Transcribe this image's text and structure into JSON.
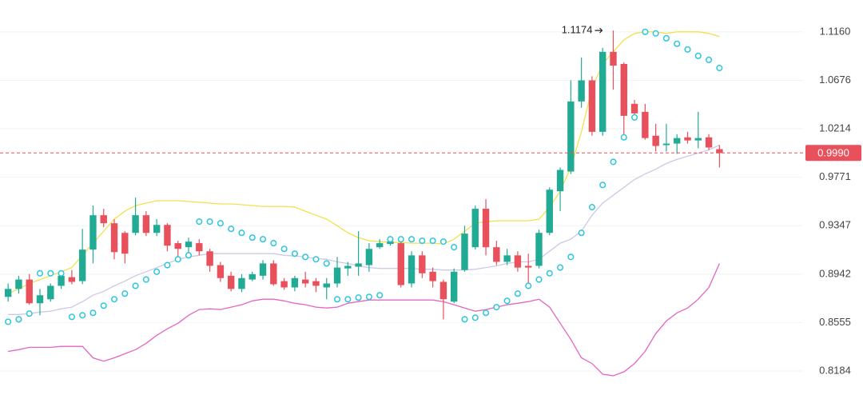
{
  "chart_data": {
    "type": "candlestick",
    "log_scale": true,
    "grid": true,
    "up_color": "#22ab94",
    "down_color": "#e8505b",
    "categories": [
      null,
      null,
      null,
      null,
      null,
      null,
      null,
      null,
      null,
      null,
      null,
      null,
      null,
      null,
      null,
      null,
      null,
      null,
      null,
      null,
      null,
      null,
      null,
      null,
      null,
      null,
      null,
      null,
      null,
      null,
      null,
      null,
      null,
      null,
      null,
      null,
      null,
      null,
      null,
      null,
      null,
      null,
      null,
      null,
      null,
      null,
      null,
      null,
      null,
      null,
      null,
      null,
      null,
      null,
      null,
      null,
      null,
      null,
      null,
      null,
      null,
      null,
      null,
      null,
      null,
      null,
      null,
      null
    ],
    "open": [
      0.8758,
      0.8822,
      0.8898,
      0.8707,
      0.8739,
      0.8847,
      0.8917,
      0.8885,
      0.9145,
      0.9437,
      0.9368,
      0.9286,
      0.9286,
      0.9437,
      0.9286,
      0.9354,
      0.9199,
      0.9165,
      0.9199,
      0.9131,
      0.9016,
      0.8929,
      0.8822,
      0.8898,
      0.8929,
      0.903,
      0.8885,
      0.8834,
      0.8898,
      0.8885,
      0.8834,
      0.8866,
      0.8989,
      0.9003,
      0.9016,
      0.9165,
      0.9192,
      0.9199,
      0.8866,
      0.9097,
      0.8962,
      0.8879,
      0.872,
      0.8976,
      0.9165,
      0.9493,
      0.9165,
      0.9043,
      0.9097,
      0.901,
      0.901,
      0.9286,
      0.9646,
      0.9822,
      1.0472,
      1.0676,
      1.0185,
      1.0958,
      1.0837,
      1.0449,
      1.0373,
      1.0149,
      1.0062,
      1.0076,
      1.0134,
      1.0105,
      1.0134,
      1.0025
    ],
    "high": [
      0.8866,
      0.8929,
      0.8942,
      0.8822,
      0.8866,
      0.8962,
      0.8976,
      0.932,
      0.9521,
      0.9493,
      0.9403,
      0.93,
      0.959,
      0.9472,
      0.9403,
      0.9368,
      0.9219,
      0.9246,
      0.9232,
      0.9151,
      0.9043,
      0.8962,
      0.8942,
      0.8962,
      0.9057,
      0.9057,
      0.891,
      0.8929,
      0.8962,
      0.891,
      0.891,
      0.9084,
      0.9043,
      0.93,
      0.9199,
      0.9232,
      0.9232,
      0.9232,
      0.9131,
      0.9131,
      0.8996,
      0.8898,
      0.8989,
      0.9347,
      0.9521,
      0.9576,
      0.9219,
      0.9151,
      0.9131,
      0.9111,
      0.9313,
      0.9681,
      0.9858,
      1.0676,
      1.0902,
      1.0716,
      1.0999,
      1.1174,
      1.0853,
      1.0487,
      1.0449,
      1.026,
      1.026,
      1.0163,
      1.0185,
      1.0373,
      1.0163,
      1.0062
    ],
    "low": [
      0.872,
      0.8784,
      0.8695,
      0.8612,
      0.872,
      0.8822,
      0.886,
      0.886,
      0.903,
      0.9334,
      0.9064,
      0.903,
      0.9266,
      0.9259,
      0.9259,
      0.9131,
      0.9064,
      0.9111,
      0.9097,
      0.8962,
      0.8879,
      0.8803,
      0.8796,
      0.8885,
      0.8898,
      0.8847,
      0.8815,
      0.8803,
      0.8834,
      0.8796,
      0.8739,
      0.8834,
      0.8929,
      0.8929,
      0.8962,
      0.9151,
      0.9178,
      0.8834,
      0.8834,
      0.891,
      0.8834,
      0.858,
      0.8707,
      0.8962,
      0.9145,
      0.9097,
      0.9016,
      0.9016,
      0.8962,
      0.8866,
      0.8989,
      0.9266,
      0.9472,
      0.98,
      1.0411,
      1.0149,
      1.0149,
      1.0585,
      1.0149,
      1.0335,
      1.0112,
      1.0003,
      1.0003,
      0.9982,
      1.0076,
      1.0033,
      1.0018,
      0.9858
    ],
    "close": [
      0.8822,
      0.8898,
      0.8707,
      0.8771,
      0.8847,
      0.8929,
      0.8879,
      0.9145,
      0.9437,
      0.9368,
      0.9124,
      0.9111,
      0.9437,
      0.9286,
      0.9354,
      0.9178,
      0.9151,
      0.9212,
      0.9131,
      0.901,
      0.891,
      0.8822,
      0.891,
      0.8942,
      0.903,
      0.886,
      0.8834,
      0.891,
      0.8866,
      0.8847,
      0.8866,
      0.8996,
      0.901,
      0.903,
      0.9151,
      0.9199,
      0.9212,
      0.8853,
      0.9097,
      0.8949,
      0.8885,
      0.8739,
      0.8962,
      0.928,
      0.9493,
      0.9165,
      0.9043,
      0.9097,
      0.8996,
      0.8996,
      0.9286,
      0.966,
      0.9836,
      1.0472,
      1.0676,
      1.0185,
      1.0958,
      1.0821,
      1.0335,
      1.0358,
      1.0127,
      1.0054,
      1.0076,
      1.0127,
      1.0105,
      1.0127,
      1.004,
      0.999
    ],
    "overlays": [
      {
        "style": "line",
        "color": "#f2e14c",
        "values": [
          0.8784,
          0.8822,
          0.8866,
          0.8898,
          0.8929,
          0.8962,
          0.8996,
          0.9097,
          0.9199,
          0.93,
          0.9403,
          0.9472,
          0.9521,
          0.9542,
          0.9563,
          0.9563,
          0.9563,
          0.9556,
          0.9549,
          0.9542,
          0.9535,
          0.9535,
          0.9528,
          0.9521,
          0.9514,
          0.9514,
          0.9514,
          0.9507,
          0.9472,
          0.9437,
          0.9403,
          0.9347,
          0.9286,
          0.9246,
          0.9219,
          0.9212,
          0.9205,
          0.9205,
          0.9199,
          0.9199,
          0.9199,
          0.9192,
          0.9232,
          0.93,
          0.9368,
          0.9382,
          0.9389,
          0.9389,
          0.9389,
          0.9389,
          0.9403,
          0.9507,
          0.9646,
          0.9858,
          1.0185,
          1.06,
          1.0837,
          1.0958,
          1.1079,
          1.1144,
          1.116,
          1.116,
          1.1144,
          1.116,
          1.116,
          1.116,
          1.1144,
          1.1112
        ]
      },
      {
        "style": "line",
        "color": "#cdc9e6",
        "values": [
          0.8618,
          0.8618,
          0.8625,
          0.8637,
          0.8644,
          0.8663,
          0.8676,
          0.872,
          0.8771,
          0.8803,
          0.8847,
          0.8885,
          0.8929,
          0.8962,
          0.8996,
          0.903,
          0.9064,
          0.9084,
          0.9097,
          0.9111,
          0.9111,
          0.9111,
          0.9111,
          0.9111,
          0.9111,
          0.9111,
          0.9097,
          0.9091,
          0.9084,
          0.907,
          0.9064,
          0.9043,
          0.903,
          0.901,
          0.8996,
          0.8989,
          0.8989,
          0.8989,
          0.8989,
          0.8982,
          0.8982,
          0.8976,
          0.8976,
          0.8976,
          0.8982,
          0.8996,
          0.901,
          0.903,
          0.9043,
          0.9043,
          0.9064,
          0.9131,
          0.9199,
          0.9232,
          0.93,
          0.9437,
          0.9542,
          0.9611,
          0.9681,
          0.975,
          0.98,
          0.9843,
          0.9895,
          0.9931,
          0.996,
          0.9989,
          1.0018,
          1.0062
        ]
      },
      {
        "style": "line",
        "color": "#e466c4",
        "values": [
          0.8332,
          0.8345,
          0.8363,
          0.8363,
          0.8363,
          0.837,
          0.837,
          0.837,
          0.8283,
          0.8258,
          0.8283,
          0.8314,
          0.8345,
          0.8394,
          0.8456,
          0.8506,
          0.8549,
          0.8612,
          0.8657,
          0.8663,
          0.8657,
          0.8676,
          0.8695,
          0.8726,
          0.8739,
          0.8739,
          0.8726,
          0.8707,
          0.8695,
          0.8676,
          0.8669,
          0.8676,
          0.8707,
          0.872,
          0.8733,
          0.8733,
          0.8733,
          0.8733,
          0.8733,
          0.8733,
          0.8733,
          0.872,
          0.8695,
          0.8669,
          0.8644,
          0.8657,
          0.8676,
          0.8695,
          0.8707,
          0.872,
          0.8739,
          0.8676,
          0.8549,
          0.8425,
          0.8283,
          0.824,
          0.816,
          0.8148,
          0.8178,
          0.824,
          0.8332,
          0.8468,
          0.8567,
          0.8631,
          0.8669,
          0.8739,
          0.8834,
          0.903
        ]
      },
      {
        "style": "dots",
        "color": "#2cc6de",
        "values": [
          0.8561,
          0.858,
          0.8625,
          0.8949,
          0.8949,
          0.8949,
          0.8599,
          0.8612,
          0.8631,
          0.8688,
          0.8739,
          0.8784,
          0.8847,
          0.8898,
          0.8962,
          0.9016,
          0.9064,
          0.9097,
          0.9382,
          0.9382,
          0.9368,
          0.932,
          0.9286,
          0.9246,
          0.9232,
          0.9199,
          0.9151,
          0.9111,
          0.9084,
          0.9064,
          0.903,
          0.8739,
          0.8739,
          0.8752,
          0.8758,
          0.8771,
          0.9232,
          0.9232,
          0.9232,
          0.9219,
          0.9219,
          0.9212,
          0.9165,
          0.858,
          0.8593,
          0.8631,
          0.8676,
          0.8726,
          0.8784,
          0.8847,
          0.8898,
          0.8949,
          0.8996,
          0.9084,
          0.9286,
          0.9507,
          0.9702,
          0.9909,
          1.0134,
          1.032,
          1.116,
          1.1144,
          1.1095,
          1.1039,
          1.0982,
          1.0918,
          1.0878,
          1.0797
        ]
      }
    ],
    "high_marker": 1.1174,
    "last_price": {
      "value": 0.999,
      "label": "0.9990"
    },
    "ylim": [
      0.789,
      1.149
    ],
    "yticks": [
      {
        "value": 1.116,
        "label": "1.1160"
      },
      1.0676,
      1.0214,
      0.9771,
      0.9347,
      0.8942,
      0.8555,
      0.8184
    ]
  }
}
